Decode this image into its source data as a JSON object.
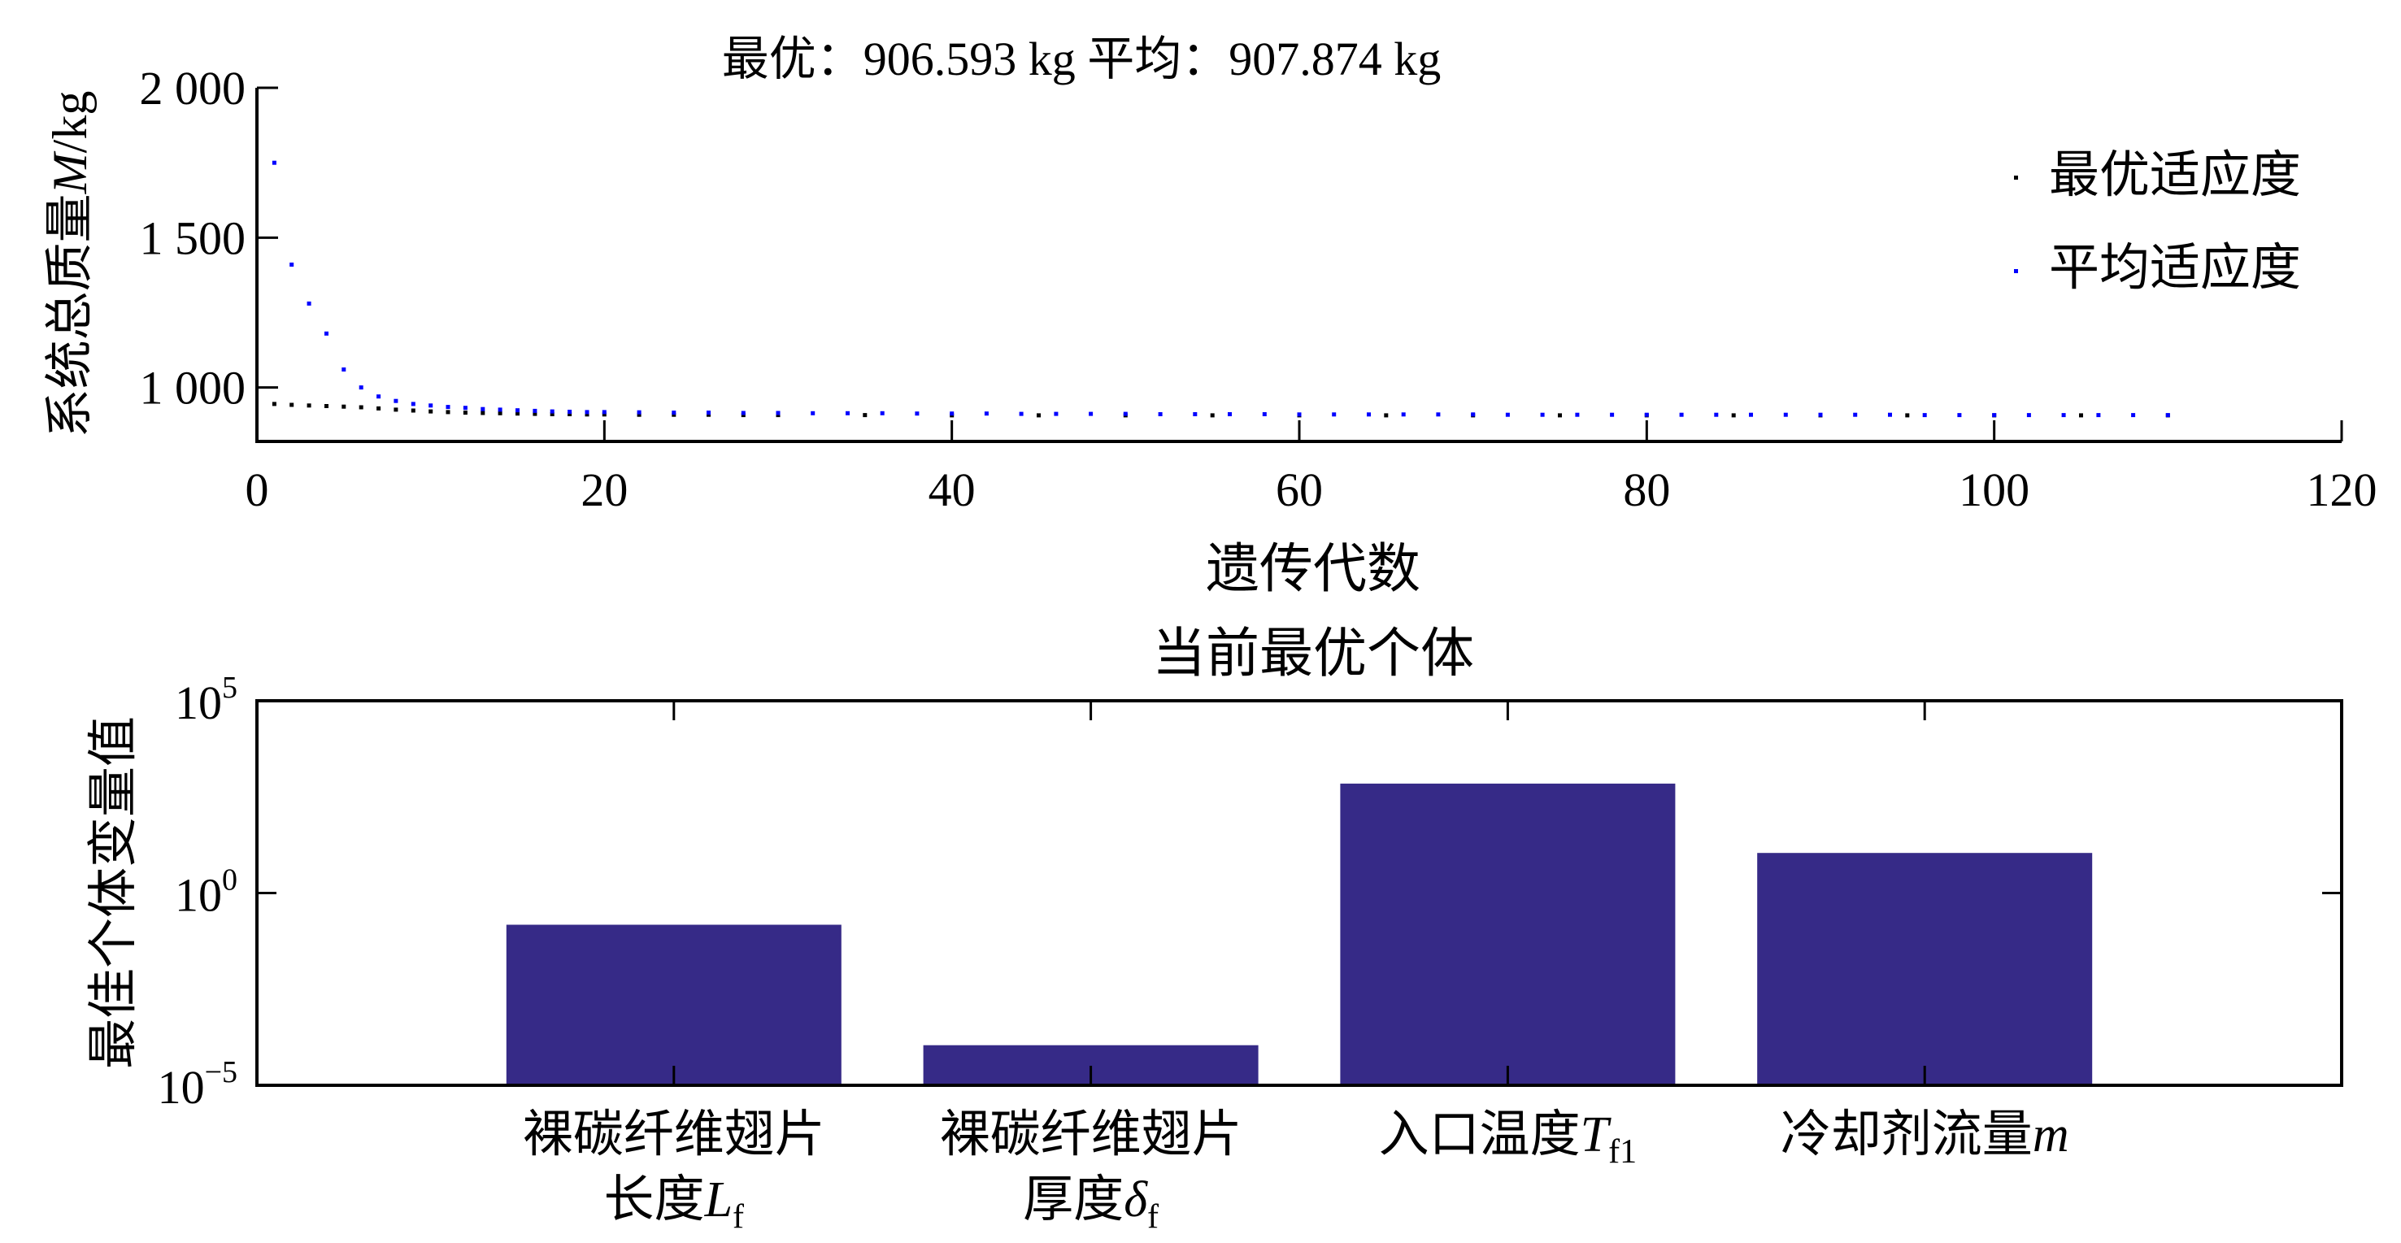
{
  "chart_data": [
    {
      "type": "scatter",
      "title": "最优：906.593 kg  平均：907.874 kg",
      "xlabel": "遗传代数",
      "ylabel_parts": [
        "系统总质量",
        "M",
        "/kg"
      ],
      "xlim": [
        0,
        120
      ],
      "ylim": [
        820,
        2000
      ],
      "x_ticks": [
        0,
        20,
        40,
        60,
        80,
        100,
        120
      ],
      "x_tick_labels": [
        "0",
        "20",
        "40",
        "60",
        "80",
        "100",
        "120"
      ],
      "y_ticks": [
        1000,
        1500,
        2000
      ],
      "y_tick_labels": [
        "1 000",
        "1 500",
        "2 000"
      ],
      "legend_position": "top-right",
      "series": [
        {
          "name": "最优适应度",
          "color": "#000000",
          "x": [
            1,
            2,
            3,
            4,
            5,
            6,
            7,
            8,
            9,
            10,
            11,
            12,
            13,
            14,
            15,
            16,
            17,
            18,
            19,
            20,
            22,
            24,
            26,
            28,
            30,
            35,
            40,
            45,
            50,
            55,
            60,
            65,
            70,
            75,
            80,
            85,
            90,
            95,
            100,
            105,
            110
          ],
          "y": [
            945,
            942,
            940,
            938,
            936,
            934,
            930,
            926,
            923,
            920,
            918,
            916,
            915,
            914,
            913,
            912,
            911,
            911,
            910,
            910,
            909,
            909,
            909,
            908,
            908,
            908,
            907,
            907,
            907,
            907,
            907,
            907,
            907,
            907,
            907,
            907,
            907,
            907,
            907,
            907,
            907
          ]
        },
        {
          "name": "平均适应度",
          "color": "#0000ff",
          "x": [
            1,
            2,
            3,
            4,
            5,
            6,
            7,
            8,
            9,
            10,
            11,
            12,
            13,
            14,
            15,
            16,
            17,
            18,
            19,
            20,
            22,
            24,
            26,
            28,
            30,
            32,
            34,
            36,
            38,
            40,
            42,
            44,
            46,
            48,
            50,
            52,
            54,
            56,
            58,
            60,
            62,
            64,
            66,
            68,
            70,
            72,
            74,
            76,
            78,
            80,
            82,
            84,
            86,
            88,
            90,
            92,
            94,
            96,
            98,
            100,
            102,
            104,
            106,
            108,
            110
          ],
          "y": [
            1750,
            1410,
            1280,
            1180,
            1060,
            1000,
            970,
            955,
            945,
            940,
            935,
            932,
            928,
            926,
            924,
            922,
            920,
            919,
            918,
            918,
            917,
            916,
            916,
            915,
            915,
            914,
            914,
            914,
            913,
            913,
            913,
            912,
            912,
            912,
            912,
            911,
            911,
            911,
            911,
            910,
            910,
            910,
            910,
            910,
            910,
            909,
            909,
            909,
            909,
            909,
            909,
            909,
            909,
            909,
            909,
            909,
            909,
            908,
            908,
            908,
            908,
            908,
            908,
            908,
            908
          ]
        }
      ]
    },
    {
      "type": "bar",
      "title": "当前最优个体",
      "ylabel": "最佳个体变量值",
      "y_scale": "log",
      "ylim": [
        1e-05,
        100000
      ],
      "y_tick_labels": [
        {
          "base": "10",
          "exp": "5"
        },
        {
          "base": "10",
          "exp": "0"
        },
        {
          "base": "10",
          "exp": "−5"
        }
      ],
      "bar_color": "#362a87",
      "categories": [
        {
          "line1": "裸碳纤维翅片",
          "line2": "长度",
          "symbol": "L",
          "sub": "f"
        },
        {
          "line1": "裸碳纤维翅片",
          "line2": "厚度",
          "symbol": "δ",
          "sub": "f"
        },
        {
          "line1": "入口温度",
          "symbol": "T",
          "sub": "f1"
        },
        {
          "line1": "冷却剂流量",
          "symbol": "m",
          "sub": ""
        }
      ],
      "values": [
        0.15,
        0.00011,
        700,
        11
      ]
    }
  ]
}
